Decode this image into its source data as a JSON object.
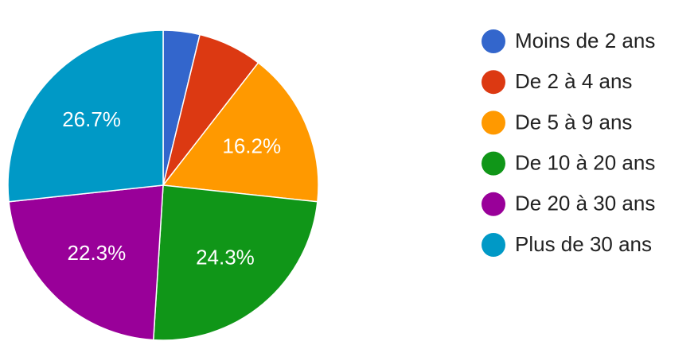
{
  "chart_data": {
    "type": "pie",
    "categories": [
      "Moins de 2 ans",
      "De 2 à 4 ans",
      "De 5 à 9 ans",
      "De 10 à 20 ans",
      "De 20 à 30 ans",
      "Plus de 30 ans"
    ],
    "values": [
      3.8,
      6.7,
      16.2,
      24.3,
      22.3,
      26.7
    ],
    "value_labels": [
      null,
      null,
      "16.2%",
      "24.3%",
      "22.3%",
      "26.7%"
    ],
    "colors": [
      "#3366cc",
      "#dc3912",
      "#ff9900",
      "#109618",
      "#990099",
      "#0099c6"
    ]
  }
}
